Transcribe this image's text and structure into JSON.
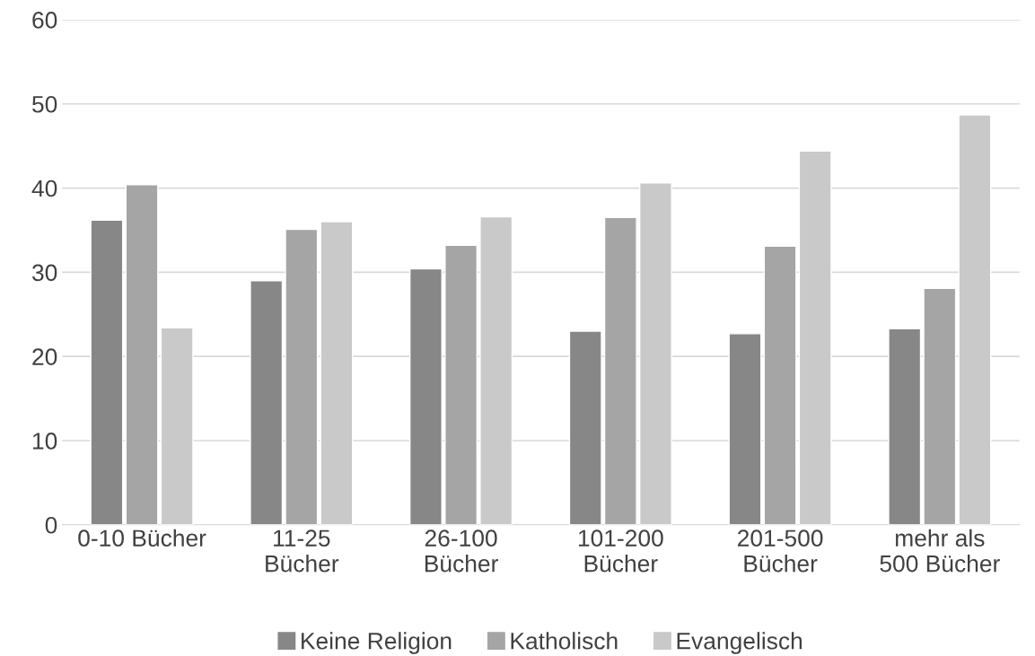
{
  "chart_data": {
    "type": "bar",
    "categories": [
      "0-10 Bücher",
      "11-25\nBücher",
      "26-100\nBücher",
      "101-200\nBücher",
      "201-500\nBücher",
      "mehr als\n500 Bücher"
    ],
    "series": [
      {
        "name": "Keine Religion",
        "color": "#878787",
        "values": [
          36.2,
          29.0,
          30.4,
          23.0,
          22.7,
          23.3
        ]
      },
      {
        "name": "Katholisch",
        "color": "#a5a5a5",
        "values": [
          40.4,
          35.1,
          33.2,
          36.5,
          33.1,
          28.1
        ]
      },
      {
        "name": "Evangelisch",
        "color": "#c9c9c9",
        "values": [
          23.4,
          36.0,
          36.6,
          40.6,
          44.4,
          48.7
        ]
      }
    ],
    "ylim": [
      0,
      60
    ],
    "yticks": [
      0,
      10,
      20,
      30,
      40,
      50,
      60
    ],
    "grid": "y",
    "legend": "bottom"
  }
}
